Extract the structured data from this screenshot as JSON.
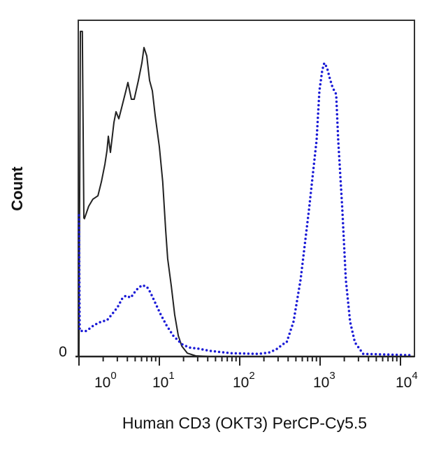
{
  "chart_data": {
    "type": "line",
    "title": "",
    "xlabel": "Human CD3 (OKT3) PerCP-Cy5.5",
    "ylabel": "Count",
    "x_scale": "log",
    "xlim": [
      1,
      14000
    ],
    "ylim": [
      0,
      100
    ],
    "x_ticks": [
      {
        "base": "10",
        "exp": "0"
      },
      {
        "base": "10",
        "exp": "1"
      },
      {
        "base": "10",
        "exp": "2"
      },
      {
        "base": "10",
        "exp": "3"
      },
      {
        "base": "10",
        "exp": "4"
      }
    ],
    "y_ticks": [
      "0"
    ],
    "grid": false,
    "series": [
      {
        "style": "solid",
        "color": "#222222",
        "x": [
          1.0,
          1.04,
          1.1,
          1.15,
          1.17,
          1.32,
          1.49,
          1.72,
          1.9,
          2.1,
          2.23,
          2.32,
          2.46,
          2.72,
          2.89,
          3.13,
          3.46,
          3.83,
          4.06,
          4.49,
          4.86,
          5.48,
          6.06,
          6.44,
          6.97,
          7.55,
          8.18,
          8.87,
          10,
          11.0,
          12.0,
          12.7,
          14.1,
          15.5,
          17.2,
          19.0,
          22.3,
          28.3,
          42.3,
          14000
        ],
        "y": [
          0,
          96.7,
          96.7,
          41.2,
          41.0,
          44.7,
          46.8,
          47.8,
          52.0,
          57.2,
          61.3,
          65.5,
          60.7,
          69.6,
          72.8,
          70.7,
          74.8,
          79.0,
          81.5,
          76.5,
          76.5,
          82.1,
          87.3,
          91.9,
          89.4,
          82.1,
          79.0,
          71.7,
          62.4,
          52.0,
          37.4,
          29.1,
          20.8,
          12.5,
          6.2,
          3.1,
          1.0,
          0.2,
          0,
          0
        ]
      },
      {
        "style": "dotted",
        "color": "#1a1ad6",
        "x": [
          1.0,
          1.02,
          1.2,
          1.35,
          1.55,
          1.9,
          2.23,
          2.56,
          3.01,
          3.46,
          3.83,
          4.4,
          5.16,
          6.06,
          6.97,
          7.72,
          8.87,
          10.4,
          12.2,
          14.9,
          19.0,
          23.3,
          31.3,
          42.3,
          77.2,
          171,
          232,
          284,
          347,
          383,
          467,
          572,
          727,
          905,
          981,
          1063,
          1127,
          1220,
          1320,
          1432,
          1585,
          1680,
          1890,
          2090,
          2360,
          2710,
          3440,
          14000
        ],
        "y": [
          42.0,
          7.7,
          7.5,
          8.3,
          9.4,
          10.4,
          10.8,
          12.5,
          14.6,
          17.3,
          18.1,
          17.5,
          19.8,
          21.2,
          20.8,
          19.1,
          16.0,
          12.5,
          9.4,
          6.2,
          3.7,
          2.7,
          2.3,
          1.7,
          1.0,
          0.8,
          1.2,
          2.1,
          3.7,
          4.2,
          10.4,
          22.9,
          43.7,
          64.4,
          79.0,
          85.2,
          87.3,
          85.9,
          82.7,
          80.0,
          78.0,
          64.4,
          43.7,
          22.9,
          10.4,
          4.2,
          0.8,
          0.4
        ]
      }
    ]
  }
}
